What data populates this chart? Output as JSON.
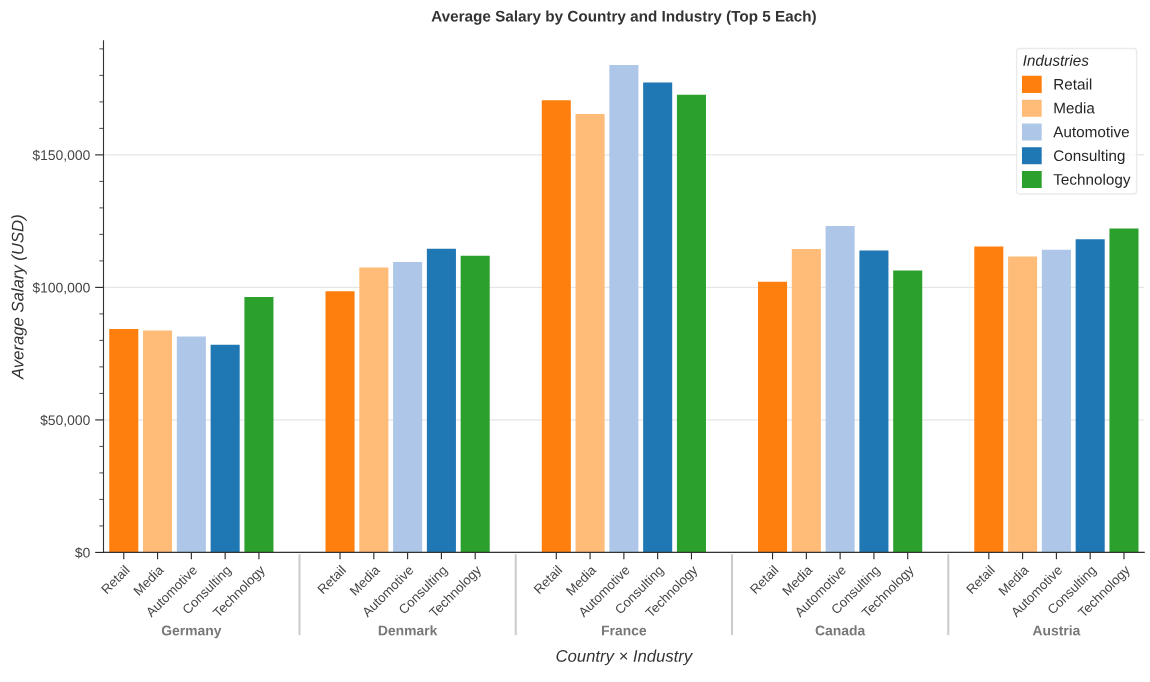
{
  "chart_data": {
    "type": "bar",
    "title": "Average Salary by Country and Industry (Top 5 Each)",
    "xlabel": "Country × Industry",
    "ylabel": "Average Salary (USD)",
    "legend_title": "Industries",
    "categories": [
      "Germany",
      "Denmark",
      "France",
      "Canada",
      "Austria"
    ],
    "series": [
      {
        "name": "Retail",
        "color": "#ff7f0e",
        "values": [
          84300,
          98500,
          170600,
          102100,
          115400
        ]
      },
      {
        "name": "Media",
        "color": "#ffbb78",
        "values": [
          83700,
          107500,
          165400,
          114500,
          111700
        ]
      },
      {
        "name": "Automotive",
        "color": "#aec7e8",
        "values": [
          81500,
          109600,
          183900,
          123200,
          114200
        ]
      },
      {
        "name": "Consulting",
        "color": "#1f77b4",
        "values": [
          78400,
          114600,
          177300,
          113900,
          118200
        ]
      },
      {
        "name": "Technology",
        "color": "#2ca02c",
        "values": [
          96400,
          111900,
          172700,
          106400,
          122200
        ]
      }
    ],
    "ylim": [
      0,
      193000
    ],
    "yticks": [
      {
        "value": 0,
        "label": "$0"
      },
      {
        "value": 50000,
        "label": "$50,000"
      },
      {
        "value": 100000,
        "label": "$100,000"
      },
      {
        "value": 150000,
        "label": "$150,000"
      }
    ],
    "grid": "y",
    "legend": "top right"
  }
}
